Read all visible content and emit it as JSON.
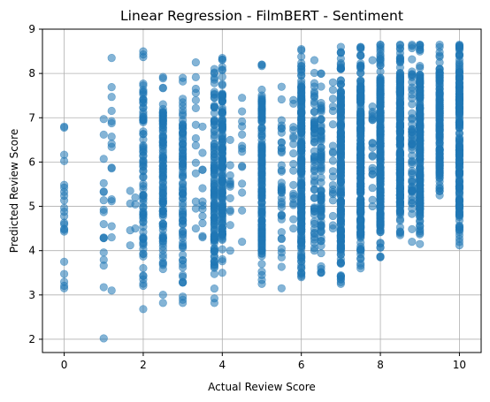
{
  "chart_data": {
    "type": "scatter",
    "title": "Linear Regression - FilmBERT - Sentiment",
    "xlabel": "Actual Review Score",
    "ylabel": "Predicted Review Score",
    "xlim": [
      -0.55,
      10.55
    ],
    "ylim": [
      1.7,
      9.0
    ],
    "xticks": [
      0,
      2,
      4,
      6,
      8,
      10
    ],
    "yticks": [
      2,
      3,
      4,
      5,
      6,
      7,
      8,
      9
    ],
    "grid": true,
    "point_color": "#1f77b4",
    "point_alpha": 0.55,
    "columns": [
      {
        "x": 0,
        "ymin": 3.15,
        "ymax": 6.8,
        "n": 22
      },
      {
        "x": 1,
        "ymin": 2.02,
        "ymax": 6.97,
        "n": 18
      },
      {
        "x": 1.2,
        "ymin": 3.1,
        "ymax": 8.35,
        "n": 16
      },
      {
        "x": 1.67,
        "ymin": 4.12,
        "ymax": 5.35,
        "n": 4
      },
      {
        "x": 1.8,
        "ymin": 4.5,
        "ymax": 5.2,
        "n": 3
      },
      {
        "x": 2,
        "ymin": 2.68,
        "ymax": 8.5,
        "n": 90
      },
      {
        "x": 2.5,
        "ymin": 2.82,
        "ymax": 7.92,
        "n": 110
      },
      {
        "x": 3,
        "ymin": 2.82,
        "ymax": 7.9,
        "n": 90
      },
      {
        "x": 3.33,
        "ymin": 4.5,
        "ymax": 8.25,
        "n": 14
      },
      {
        "x": 3.5,
        "ymin": 4.3,
        "ymax": 6.8,
        "n": 12
      },
      {
        "x": 3.8,
        "ymin": 2.82,
        "ymax": 8.1,
        "n": 120
      },
      {
        "x": 4,
        "ymin": 3.5,
        "ymax": 8.35,
        "n": 150
      },
      {
        "x": 4.2,
        "ymin": 4.0,
        "ymax": 6.5,
        "n": 12
      },
      {
        "x": 4.5,
        "ymin": 4.2,
        "ymax": 7.45,
        "n": 14
      },
      {
        "x": 5,
        "ymin": 3.25,
        "ymax": 8.2,
        "n": 170
      },
      {
        "x": 5.5,
        "ymin": 3.15,
        "ymax": 7.7,
        "n": 40
      },
      {
        "x": 5.8,
        "ymin": 4.5,
        "ymax": 7.4,
        "n": 18
      },
      {
        "x": 6,
        "ymin": 3.4,
        "ymax": 8.55,
        "n": 220
      },
      {
        "x": 6.33,
        "ymin": 4.0,
        "ymax": 8.3,
        "n": 60
      },
      {
        "x": 6.5,
        "ymin": 3.5,
        "ymax": 8.0,
        "n": 80
      },
      {
        "x": 6.8,
        "ymin": 4.5,
        "ymax": 7.8,
        "n": 20
      },
      {
        "x": 7,
        "ymin": 3.25,
        "ymax": 8.6,
        "n": 220
      },
      {
        "x": 7.5,
        "ymin": 3.6,
        "ymax": 8.6,
        "n": 240
      },
      {
        "x": 7.8,
        "ymin": 5.0,
        "ymax": 8.3,
        "n": 20
      },
      {
        "x": 8,
        "ymin": 3.85,
        "ymax": 8.65,
        "n": 250
      },
      {
        "x": 8.5,
        "ymin": 4.35,
        "ymax": 8.65,
        "n": 240
      },
      {
        "x": 8.8,
        "ymin": 4.2,
        "ymax": 8.65,
        "n": 60
      },
      {
        "x": 9,
        "ymin": 4.15,
        "ymax": 8.65,
        "n": 230
      },
      {
        "x": 9.5,
        "ymin": 5.25,
        "ymax": 8.65,
        "n": 160
      },
      {
        "x": 10,
        "ymin": 4.12,
        "ymax": 8.65,
        "n": 200
      }
    ]
  }
}
